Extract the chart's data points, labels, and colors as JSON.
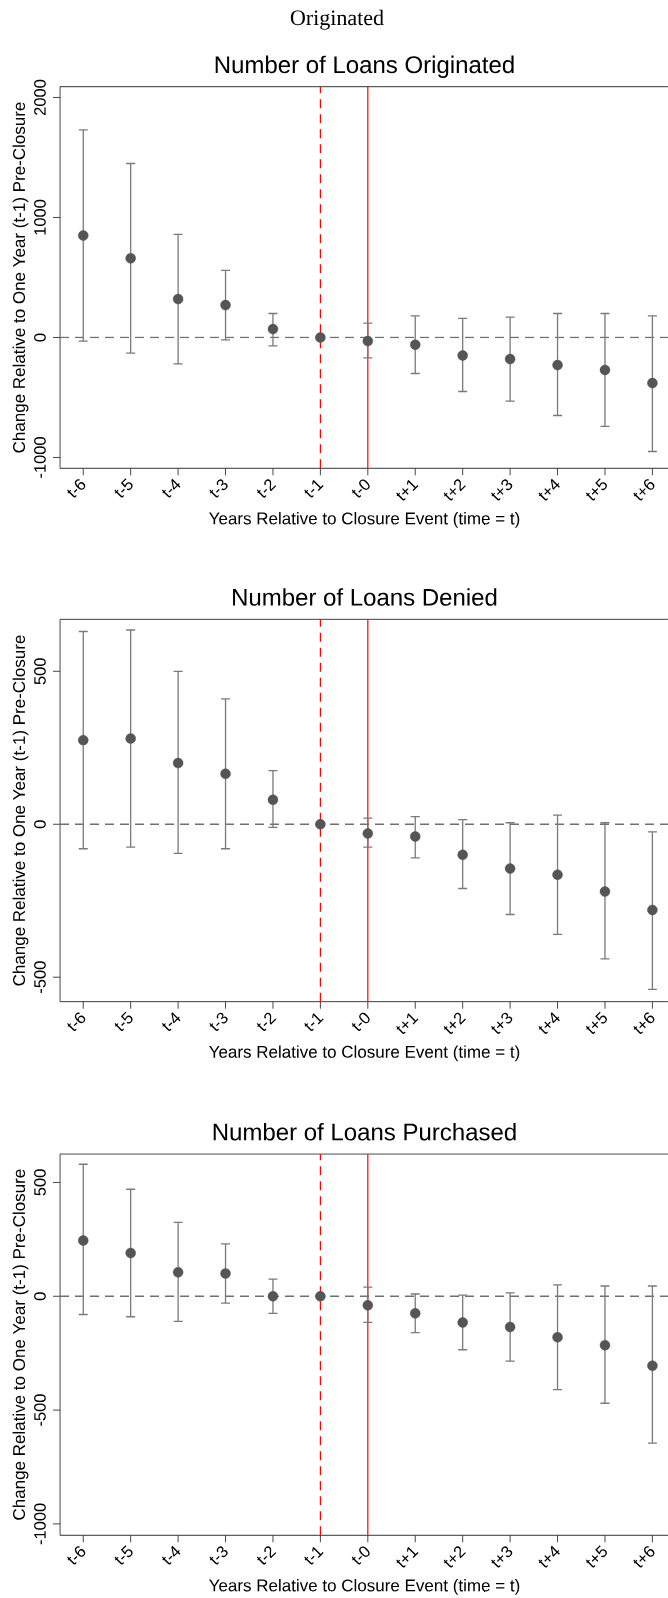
{
  "chart_data": [
    {
      "type": "scatter",
      "title": "Number of Loans Originated",
      "xlabel": "Years Relative to Closure Event (time = t)",
      "ylabel": "Change Relative to One Year (t-1) Pre-Closure",
      "annotations": [
        "Originated"
      ],
      "categories": [
        "t-6",
        "t-5",
        "t-4",
        "t-3",
        "t-2",
        "t-1",
        "t-0",
        "t+1",
        "t+2",
        "t+3",
        "t+4",
        "t+5",
        "t+6"
      ],
      "values": [
        850,
        660,
        320,
        270,
        70,
        0,
        -30,
        -60,
        -150,
        -180,
        -230,
        -270,
        -380
      ],
      "errors": [
        [
          -30,
          1730
        ],
        [
          -130,
          1450
        ],
        [
          -220,
          860
        ],
        [
          -20,
          560
        ],
        [
          -70,
          200
        ],
        null,
        [
          -170,
          120
        ],
        [
          -300,
          180
        ],
        [
          -450,
          160
        ],
        [
          -530,
          170
        ],
        [
          -650,
          200
        ],
        [
          -740,
          200
        ],
        [
          -950,
          180
        ]
      ],
      "color": "#555555",
      "marker": "circle",
      "ylim": [
        -1090,
        2090
      ],
      "yticks": [
        -1000,
        0,
        1000,
        2000
      ],
      "ref_lines": [
        {
          "axis": "y",
          "value": 0,
          "color": "#707070",
          "line_style": "dashed"
        },
        {
          "axis": "x",
          "value": "t-1",
          "color": "#ff0000",
          "line_style": "dashed"
        },
        {
          "axis": "x",
          "value": "t-0",
          "color": "#ff0000",
          "line_style": "solid"
        }
      ]
    },
    {
      "type": "scatter",
      "title": "Number of Loans Denied",
      "xlabel": "Years Relative to Closure Event (time = t)",
      "ylabel": "Change Relative to One Year (t-1) Pre-Closure",
      "categories": [
        "t-6",
        "t-5",
        "t-4",
        "t-3",
        "t-2",
        "t-1",
        "t-0",
        "t+1",
        "t+2",
        "t+3",
        "t+4",
        "t+5",
        "t+6"
      ],
      "values": [
        275,
        280,
        200,
        165,
        80,
        0,
        -30,
        -40,
        -100,
        -145,
        -165,
        -220,
        -280
      ],
      "errors": [
        [
          -80,
          630
        ],
        [
          -75,
          635
        ],
        [
          -95,
          500
        ],
        [
          -80,
          410
        ],
        [
          -10,
          175
        ],
        null,
        [
          -75,
          20
        ],
        [
          -110,
          25
        ],
        [
          -210,
          15
        ],
        [
          -295,
          5
        ],
        [
          -360,
          30
        ],
        [
          -440,
          5
        ],
        [
          -540,
          -25
        ]
      ],
      "color": "#555555",
      "marker": "circle",
      "ylim": [
        -580,
        670
      ],
      "yticks": [
        -500,
        0,
        500
      ],
      "ref_lines": [
        {
          "axis": "y",
          "value": 0,
          "color": "#707070",
          "line_style": "dashed"
        },
        {
          "axis": "x",
          "value": "t-1",
          "color": "#ff0000",
          "line_style": "dashed"
        },
        {
          "axis": "x",
          "value": "t-0",
          "color": "#ff0000",
          "line_style": "solid"
        }
      ]
    },
    {
      "type": "scatter",
      "title": "Number of Loans Purchased",
      "xlabel": "Years Relative to Closure Event (time = t)",
      "ylabel": "Change Relative to One Year (t-1) Pre-Closure",
      "categories": [
        "t-6",
        "t-5",
        "t-4",
        "t-3",
        "t-2",
        "t-1",
        "t-0",
        "t+1",
        "t+2",
        "t+3",
        "t+4",
        "t+5",
        "t+6"
      ],
      "values": [
        245,
        190,
        105,
        100,
        0,
        0,
        -40,
        -75,
        -115,
        -135,
        -180,
        -215,
        -305
      ],
      "errors": [
        [
          -80,
          580
        ],
        [
          -90,
          470
        ],
        [
          -110,
          325
        ],
        [
          -30,
          230
        ],
        [
          -75,
          75
        ],
        null,
        [
          -115,
          40
        ],
        [
          -160,
          10
        ],
        [
          -235,
          5
        ],
        [
          -285,
          15
        ],
        [
          -410,
          50
        ],
        [
          -470,
          45
        ],
        [
          -645,
          45
        ]
      ],
      "color": "#555555",
      "marker": "circle",
      "ylim": [
        -1050,
        625
      ],
      "yticks": [
        -1000,
        -500,
        0,
        500
      ],
      "ref_lines": [
        {
          "axis": "y",
          "value": 0,
          "color": "#707070",
          "line_style": "dashed"
        },
        {
          "axis": "x",
          "value": "t-1",
          "color": "#ff0000",
          "line_style": "dashed"
        },
        {
          "axis": "x",
          "value": "t-0",
          "color": "#ff0000",
          "line_style": "solid"
        }
      ]
    }
  ]
}
